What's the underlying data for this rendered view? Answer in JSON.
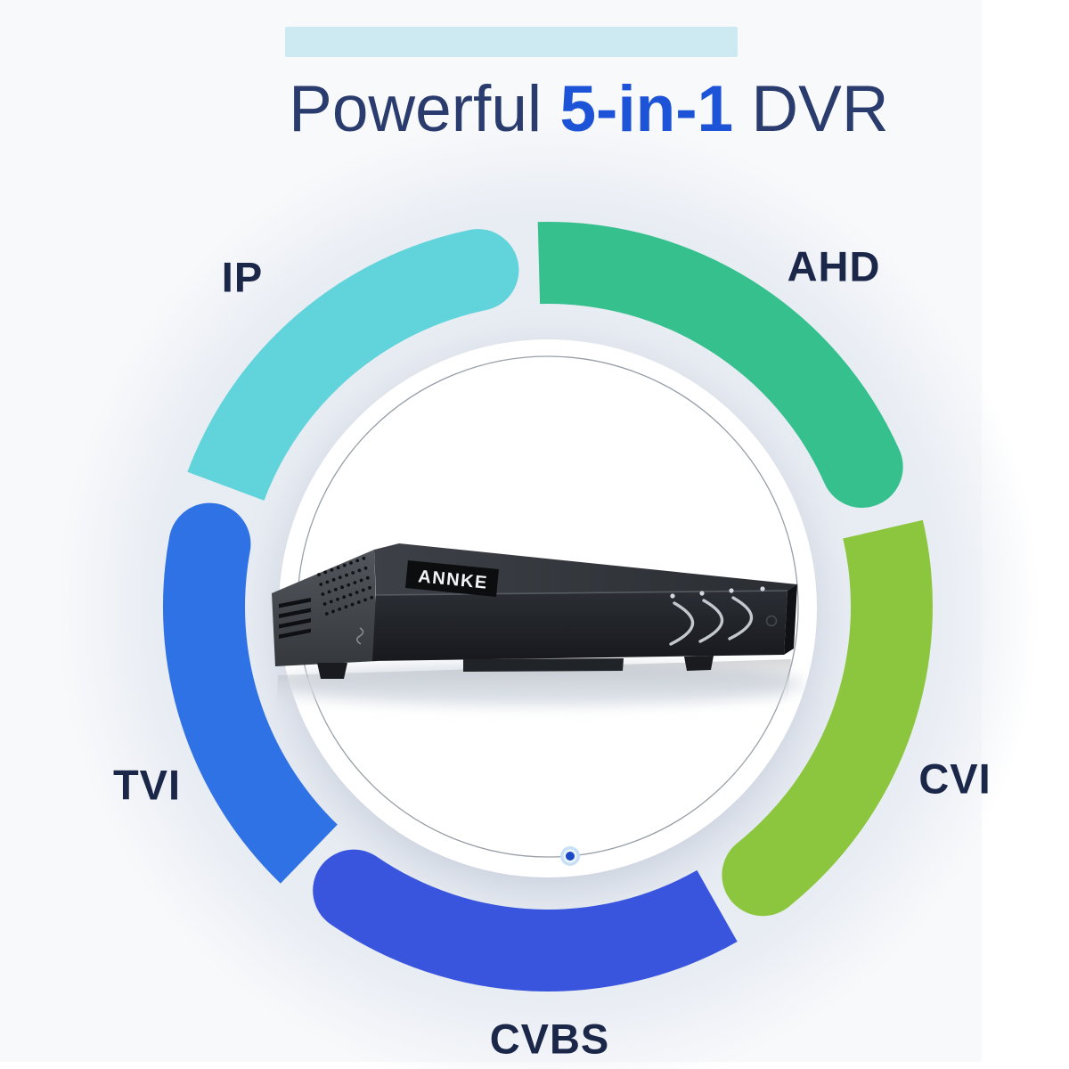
{
  "title": {
    "text_before": "Powerful ",
    "text_bold": "5-in-1",
    "text_after": " DVR"
  },
  "colors": {
    "title_navy": "#2a3b6d",
    "accent_blue": "#1d53d6",
    "title_highlight": "#cdeaf2",
    "label_navy": "#1b2749",
    "marker_blue": "#1a49c9",
    "ring_line": "#7e8791"
  },
  "diagram": {
    "description": "5-in-1 DVR supported signal types arranged in a ring",
    "segments": [
      {
        "id": "ahd",
        "label": "AHD",
        "color": "#36c08d",
        "start_deg": 358.5,
        "end_deg": 66
      },
      {
        "id": "cvi",
        "label": "CVI",
        "color": "#8cc63e",
        "start_deg": 77,
        "end_deg": 141.5
      },
      {
        "id": "cvbs",
        "label": "CVBS",
        "color": "#3a55dd",
        "start_deg": 150.5,
        "end_deg": 214.5
      },
      {
        "id": "tvi",
        "label": "TVI",
        "color": "#2e72e6",
        "start_deg": 224,
        "end_deg": 280.5
      },
      {
        "id": "ip",
        "label": "IP",
        "color": "#60d4da",
        "start_deg": 290.5,
        "end_deg": 348.5
      }
    ]
  },
  "device": {
    "brand": "ANNKE"
  }
}
